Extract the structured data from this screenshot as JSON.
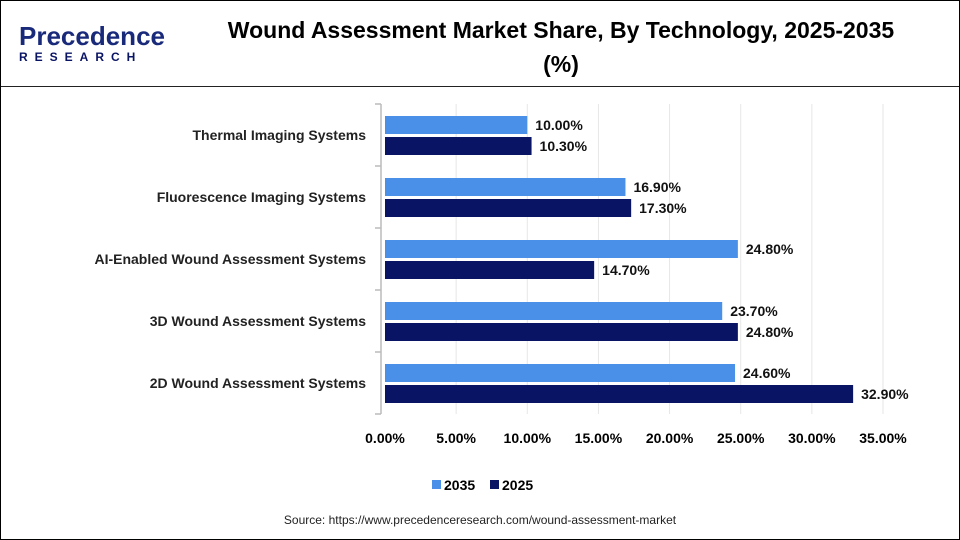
{
  "logo": {
    "line1": "Precedence",
    "line2": "RESEARCH"
  },
  "title": "Wound Assessment Market Share, By Technology, 2025-2035 (%)",
  "source": "Source: https://www.precedenceresearch.com/wound-assessment-market",
  "chart_data": {
    "type": "bar",
    "orientation": "horizontal",
    "title": "Wound Assessment Market Share, By Technology, 2025-2035 (%)",
    "categories": [
      "Thermal Imaging Systems",
      "Fluorescence Imaging Systems",
      "AI-Enabled Wound Assessment Systems",
      "3D Wound Assessment Systems",
      "2D Wound Assessment Systems"
    ],
    "series": [
      {
        "name": "2035",
        "color": "#4a90e8",
        "values": [
          10.0,
          16.9,
          24.8,
          23.7,
          24.6
        ],
        "labels": [
          "10.00%",
          "16.90%",
          "24.80%",
          "23.70%",
          "24.60%"
        ]
      },
      {
        "name": "2025",
        "color": "#0a1464",
        "values": [
          10.3,
          17.3,
          14.7,
          24.8,
          32.9
        ],
        "labels": [
          "10.30%",
          "17.30%",
          "14.70%",
          "24.80%",
          "32.90%"
        ]
      }
    ],
    "xlim": [
      0,
      35
    ],
    "xticks": [
      "0.00%",
      "5.00%",
      "10.00%",
      "15.00%",
      "20.00%",
      "25.00%",
      "30.00%",
      "35.00%"
    ],
    "grid": true,
    "legend": "bottom-center"
  }
}
